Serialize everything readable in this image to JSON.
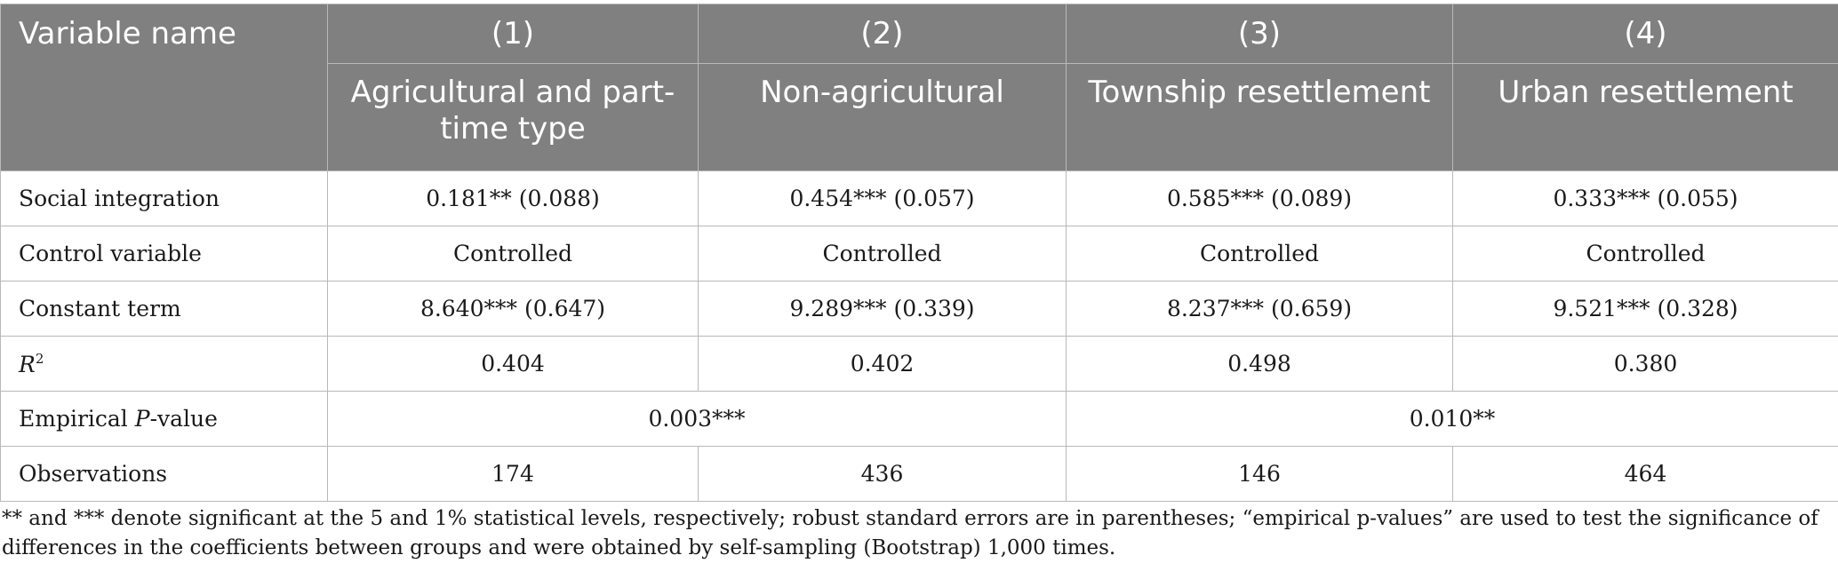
{
  "header": {
    "variable_name": "Variable name",
    "columns": [
      {
        "number": "(1)",
        "label": "Agricultural and part-time type"
      },
      {
        "number": "(2)",
        "label": "Non-agricultural"
      },
      {
        "number": "(3)",
        "label": "Township resettlement"
      },
      {
        "number": "(4)",
        "label": "Urban resettlement"
      }
    ]
  },
  "rows": {
    "social_integration": {
      "label": "Social integration",
      "values": [
        "0.181** (0.088)",
        "0.454*** (0.057)",
        "0.585*** (0.089)",
        "0.333*** (0.055)"
      ]
    },
    "control_variable": {
      "label": "Control variable",
      "values": [
        "Controlled",
        "Controlled",
        "Controlled",
        "Controlled"
      ]
    },
    "constant_term": {
      "label": "Constant term",
      "values": [
        "8.640*** (0.647)",
        "9.289*** (0.339)",
        "8.237*** (0.659)",
        "9.521*** (0.328)"
      ]
    },
    "r_squared": {
      "label_letter": "R",
      "label_superscript": "2",
      "values": [
        "0.404",
        "0.402",
        "0.498",
        "0.380"
      ]
    },
    "empirical_p": {
      "label_prefix": "Empirical ",
      "label_italic": "P",
      "label_suffix": "-value",
      "values": [
        "0.003***",
        "0.010**"
      ]
    },
    "observations": {
      "label": "Observations",
      "values": [
        "174",
        "436",
        "146",
        "464"
      ]
    }
  },
  "footnote": "** and *** denote significant at the 5 and 1% statistical levels, respectively; robust standard errors are in parentheses; “empirical p-values” are used to test the significance of differences in the coefficients between groups and were obtained by self-sampling (Bootstrap) 1,000 times."
}
